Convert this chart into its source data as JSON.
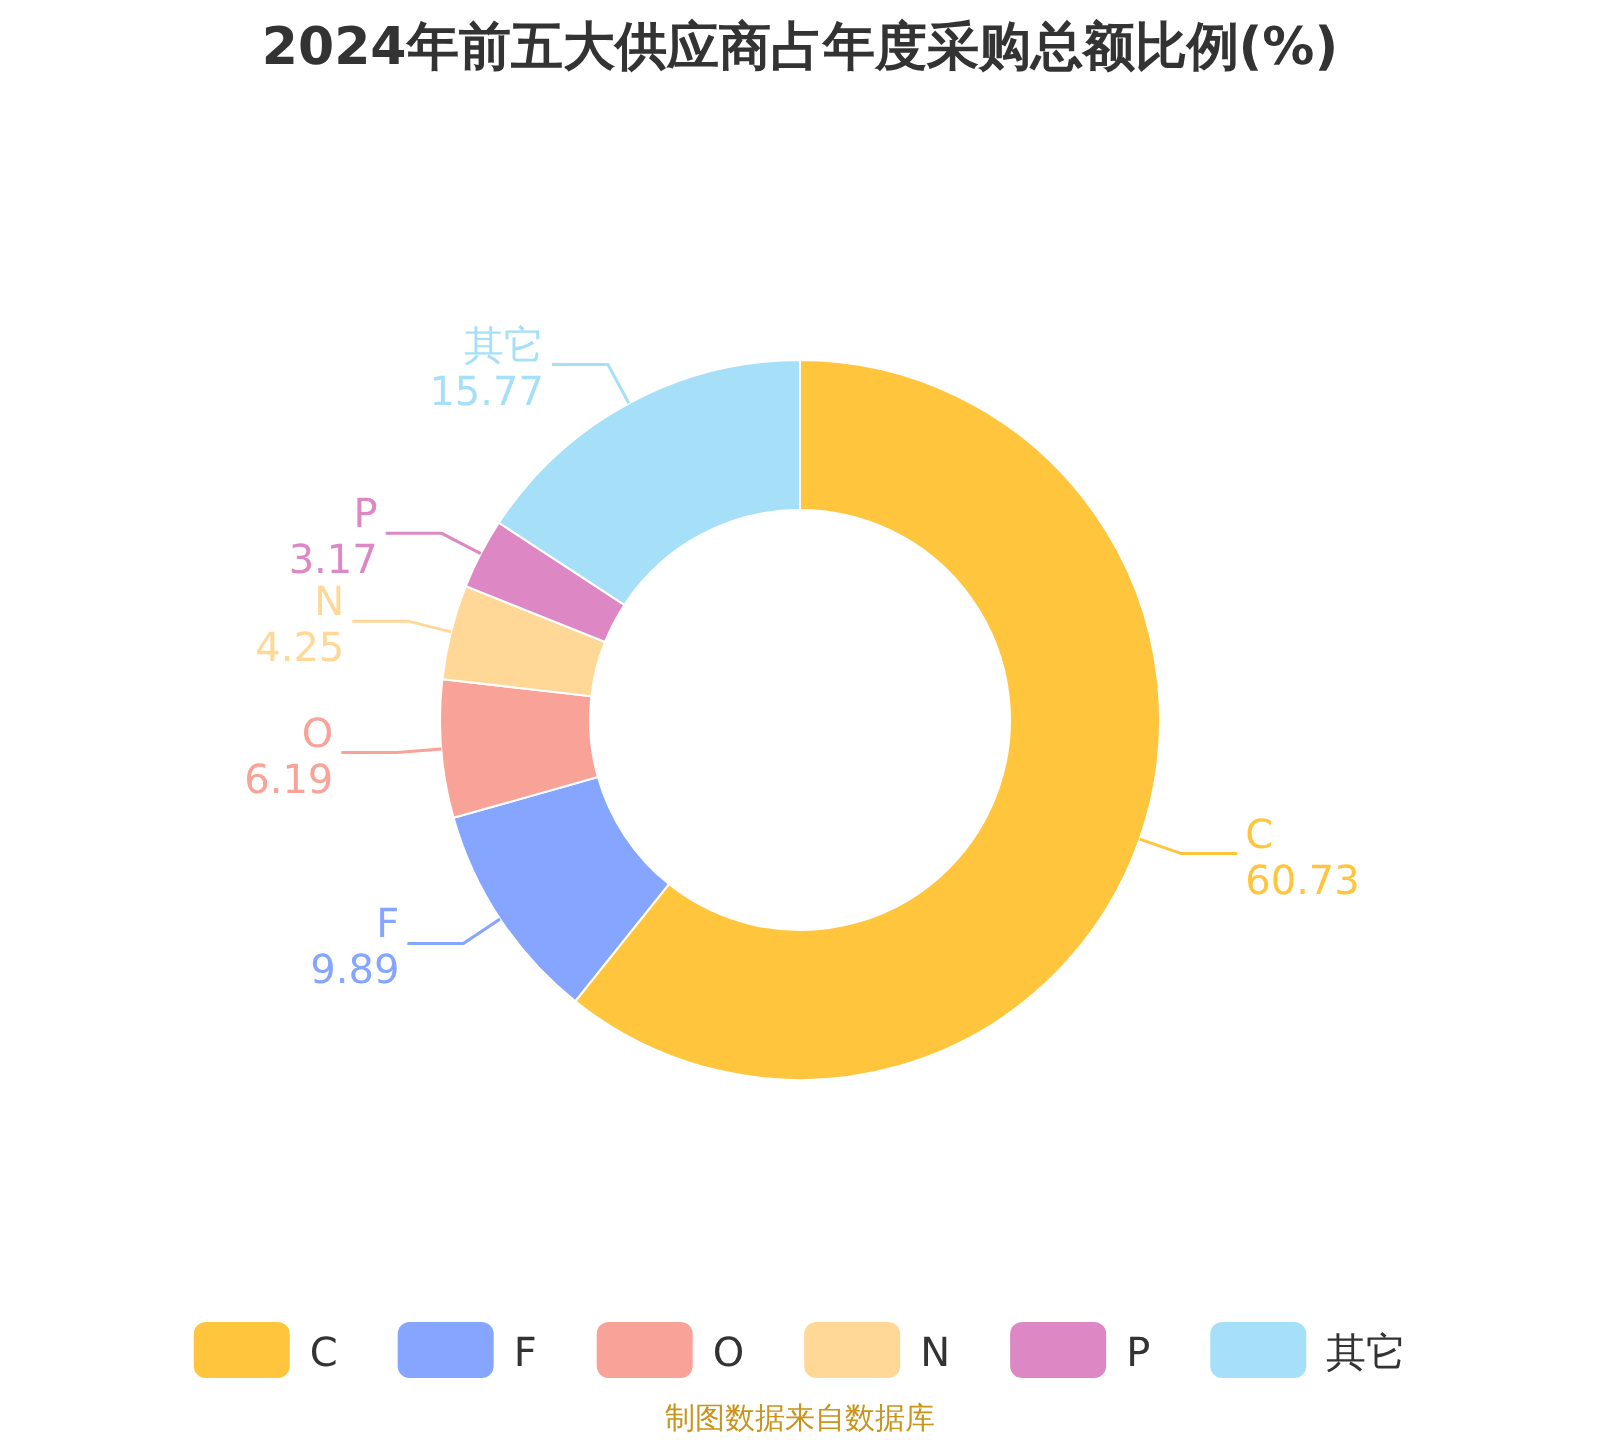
{
  "chart_data": {
    "type": "donut",
    "title": "2024年前五大供应商占年度采购总额比例(%)",
    "categories": [
      "C",
      "F",
      "O",
      "N",
      "P",
      "其它"
    ],
    "values": [
      60.73,
      9.89,
      6.19,
      4.25,
      3.17,
      15.77
    ],
    "colors": [
      "#ffc53d",
      "#85a5ff",
      "#f9a297",
      "#ffd898",
      "#dd88c4",
      "#a6dff8"
    ],
    "data_labels": true,
    "legend": "bottom",
    "annotations": [
      "制图数据来自数据库"
    ]
  }
}
